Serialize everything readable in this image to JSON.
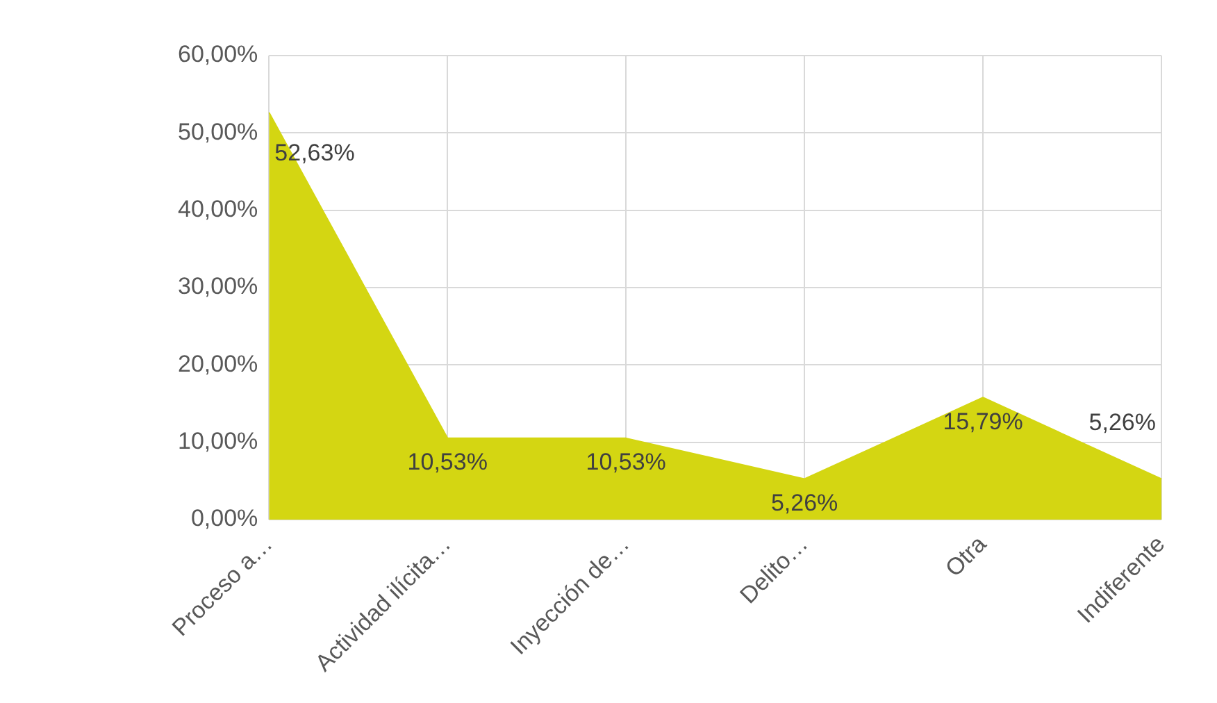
{
  "chart_data": {
    "type": "area",
    "categories": [
      "Proceso a…",
      "Actividad ilícita…",
      "Inyección de…",
      "Delito…",
      "Otra",
      "Indiferente"
    ],
    "values": [
      52.63,
      10.53,
      10.53,
      5.26,
      15.79,
      5.26
    ],
    "value_labels": [
      "52,63%",
      "10,53%",
      "10,53%",
      "5,26%",
      "15,79%",
      "5,26%"
    ],
    "color": "#d4d612",
    "ylim": [
      0,
      60
    ],
    "yticks": [
      {
        "value": 0,
        "label": "0,00%"
      },
      {
        "value": 10,
        "label": "10,00%"
      },
      {
        "value": 20,
        "label": "20,00%"
      },
      {
        "value": 30,
        "label": "30,00%"
      },
      {
        "value": 40,
        "label": "40,00%"
      },
      {
        "value": 50,
        "label": "50,00%"
      },
      {
        "value": 60,
        "label": "60,00%"
      }
    ],
    "grid": true
  }
}
